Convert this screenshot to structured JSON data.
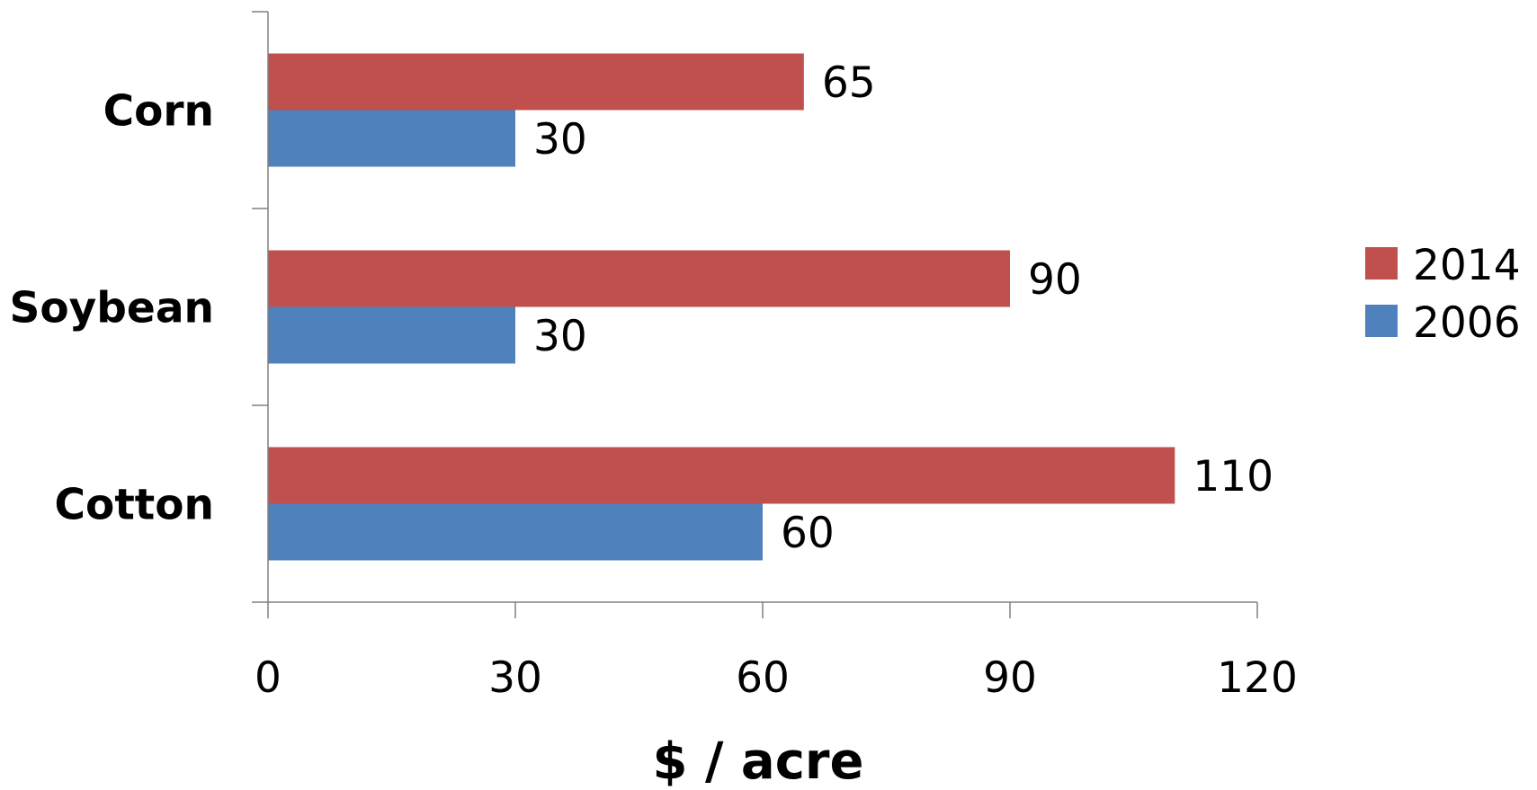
{
  "chart_data": {
    "type": "bar",
    "orientation": "horizontal",
    "categories": [
      "Corn",
      "Soybean",
      "Cotton"
    ],
    "series": [
      {
        "name": "2014",
        "values": [
          65,
          90,
          110
        ],
        "color": "#C0504D"
      },
      {
        "name": "2006",
        "values": [
          30,
          30,
          60
        ],
        "color": "#4F81BD"
      }
    ],
    "title": "",
    "xlabel": "$ / acre",
    "ylabel": "",
    "xlim": [
      0,
      120
    ],
    "xticks": [
      "0",
      "30",
      "60",
      "90",
      "120"
    ],
    "grid": false,
    "legend_position": "right"
  }
}
